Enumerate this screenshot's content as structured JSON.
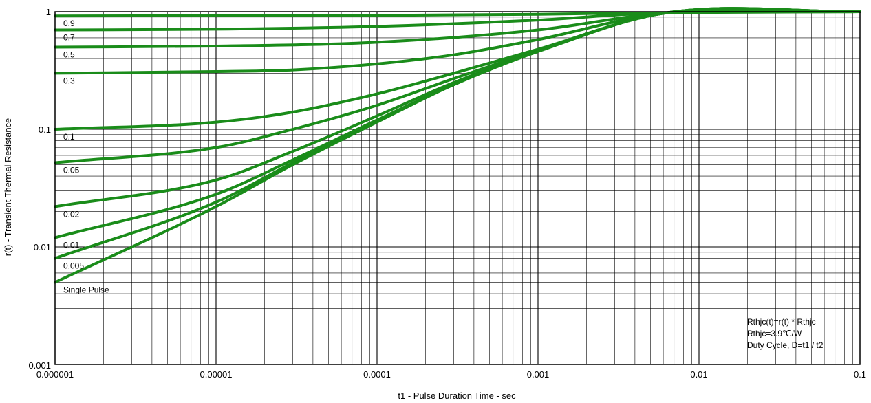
{
  "chart_data": {
    "type": "line",
    "xlabel": "t1 - Pulse Duration Time - sec",
    "ylabel": "r(t) - Transient Thermal Resistance",
    "x_scale": "log",
    "y_scale": "log",
    "xlim": [
      1e-06,
      0.1
    ],
    "ylim": [
      0.001,
      1
    ],
    "x_tick_labels": [
      "0.000001",
      "0.00001",
      "0.0001",
      "0.001",
      "0.01",
      "0.1"
    ],
    "y_tick_labels": [
      "0.001",
      "0.01",
      "0.1",
      "1"
    ],
    "grid": true,
    "line_color": "#1a8c1a",
    "annotations": [
      "Rthjc(t)=r(t) * Rthjc",
      "Rthjc=3.9℃/W",
      "Duty Cycle, D=t1 /  t2"
    ],
    "series": [
      {
        "name": "0.9",
        "x": [
          1e-06,
          1e-05,
          0.0001,
          0.001,
          0.005,
          0.1
        ],
        "y": [
          0.92,
          0.925,
          0.93,
          0.95,
          0.98,
          1.0
        ]
      },
      {
        "name": "0.7",
        "x": [
          1e-06,
          1e-05,
          0.0001,
          0.001,
          0.005,
          0.1
        ],
        "y": [
          0.7,
          0.71,
          0.75,
          0.85,
          0.97,
          1.0
        ]
      },
      {
        "name": "0.5",
        "x": [
          1e-06,
          1e-05,
          0.0001,
          0.001,
          0.006,
          0.1
        ],
        "y": [
          0.5,
          0.51,
          0.55,
          0.7,
          0.97,
          1.0
        ]
      },
      {
        "name": "0.3",
        "x": [
          1e-06,
          1e-05,
          3e-05,
          0.0001,
          0.0003,
          0.001,
          0.006,
          0.1
        ],
        "y": [
          0.3,
          0.31,
          0.32,
          0.36,
          0.43,
          0.58,
          0.97,
          1.0
        ]
      },
      {
        "name": "0.1",
        "x": [
          1e-06,
          1e-05,
          3e-05,
          0.0001,
          0.0003,
          0.001,
          0.006,
          0.1
        ],
        "y": [
          0.1,
          0.115,
          0.14,
          0.2,
          0.3,
          0.48,
          0.97,
          1.0
        ]
      },
      {
        "name": "0.05",
        "x": [
          1e-06,
          1e-05,
          3e-05,
          0.0001,
          0.0003,
          0.001,
          0.006,
          0.1
        ],
        "y": [
          0.052,
          0.07,
          0.1,
          0.16,
          0.27,
          0.47,
          0.97,
          1.0
        ]
      },
      {
        "name": "0.02",
        "x": [
          1e-06,
          1e-05,
          3e-05,
          0.0001,
          0.0003,
          0.001,
          0.006,
          0.1
        ],
        "y": [
          0.022,
          0.037,
          0.065,
          0.13,
          0.25,
          0.46,
          0.97,
          1.0
        ]
      },
      {
        "name": "0.01",
        "x": [
          1e-06,
          1e-05,
          3e-05,
          0.0001,
          0.0003,
          0.001,
          0.006,
          0.1
        ],
        "y": [
          0.012,
          0.028,
          0.055,
          0.12,
          0.24,
          0.46,
          0.97,
          1.0
        ]
      },
      {
        "name": "0.005",
        "x": [
          1e-06,
          1e-05,
          3e-05,
          0.0001,
          0.0003,
          0.001,
          0.006,
          0.1
        ],
        "y": [
          0.008,
          0.024,
          0.052,
          0.118,
          0.24,
          0.46,
          0.97,
          1.0
        ]
      },
      {
        "name": "Single Pulse",
        "x": [
          1e-06,
          1e-05,
          3e-05,
          0.0001,
          0.0003,
          0.001,
          0.006,
          0.1
        ],
        "y": [
          0.005,
          0.022,
          0.05,
          0.115,
          0.24,
          0.46,
          0.97,
          1.0
        ]
      }
    ]
  }
}
